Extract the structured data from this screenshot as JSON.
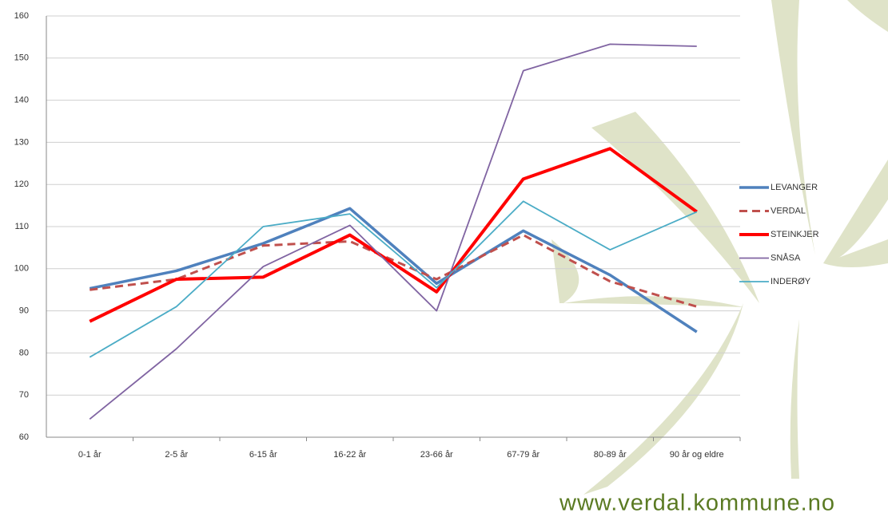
{
  "chart_data": {
    "type": "line",
    "categories": [
      "0-1 år",
      "2-5 år",
      "6-15 år",
      "16-22 år",
      "23-66 år",
      "67-79 år",
      "80-89 år",
      "90 år og eldre"
    ],
    "series": [
      {
        "name": "LEVANGER",
        "color": "#4f81bd",
        "width": 3.5,
        "dashed": false,
        "values": [
          95.3,
          99.5,
          106,
          114.3,
          96.5,
          109,
          98.5,
          85
        ]
      },
      {
        "name": "VERDAL",
        "color": "#c0504d",
        "width": 3,
        "dashed": true,
        "values": [
          95,
          97.5,
          105.5,
          106.5,
          97.5,
          108,
          97,
          91
        ]
      },
      {
        "name": "STEINKJER",
        "color": "#ff0000",
        "width": 4,
        "dashed": false,
        "values": [
          87.5,
          97.5,
          98,
          108,
          94.5,
          121.3,
          128.5,
          113.5
        ]
      },
      {
        "name": "SNÅSA",
        "color": "#8064a2",
        "width": 1.8,
        "dashed": false,
        "values": [
          64.3,
          81,
          100.5,
          110.3,
          90,
          147,
          153.3,
          152.8
        ]
      },
      {
        "name": "INDERØY",
        "color": "#4bacc6",
        "width": 1.8,
        "dashed": false,
        "values": [
          79,
          91,
          110,
          113,
          95.5,
          116,
          104.5,
          113.5
        ]
      }
    ],
    "ylim": [
      60,
      160
    ],
    "yticks": [
      60,
      70,
      80,
      90,
      100,
      110,
      120,
      130,
      140,
      150,
      160
    ],
    "grid": true,
    "legend": "right",
    "source": "www.verdal.kommune.no"
  }
}
